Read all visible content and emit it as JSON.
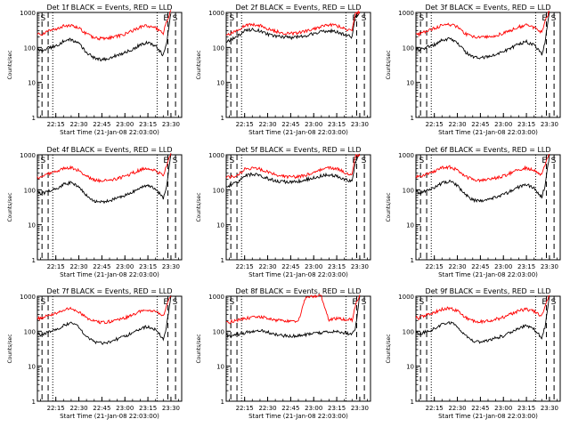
{
  "figure": {
    "start_time_label": "Start Time (21-Jan-08 22:03:00)",
    "ylabel": "Counts/sec",
    "legend_text": "BLACK = Events, RED = LLD",
    "colors": {
      "events": "#000000",
      "lld": "#ff0000",
      "axis": "#000000"
    }
  },
  "chart_data": [
    {
      "type": "line",
      "detector": "Det 1f",
      "title": "Det 1f BLACK = Events, RED = LLD",
      "xlabel": "Start Time (21-Jan-08 22:03:00)",
      "ylabel": "Counts/sec",
      "yscale": "log",
      "x_ticks": [
        "22:15",
        "22:30",
        "22:45",
        "23:00",
        "23:15",
        "23:30"
      ],
      "y_ticks": [
        "1",
        "10",
        "100",
        "1000"
      ],
      "ylim": [
        1,
        1000
      ],
      "x": [
        "22:03",
        "22:05",
        "22:10",
        "22:15",
        "22:20",
        "22:25",
        "22:30",
        "22:35",
        "22:40",
        "22:45",
        "22:50",
        "22:55",
        "23:00",
        "23:05",
        "23:10",
        "23:15",
        "23:20",
        "23:25",
        "23:27",
        "23:30"
      ],
      "series": [
        {
          "name": "RED = LLD",
          "color": "#ff0000",
          "values": [
            260,
            230,
            290,
            330,
            410,
            440,
            360,
            240,
            190,
            180,
            190,
            210,
            240,
            300,
            380,
            420,
            360,
            260,
            520,
            1100
          ]
        },
        {
          "name": "BLACK = Events",
          "color": "#000000",
          "values": [
            100,
            80,
            95,
            110,
            150,
            170,
            130,
            70,
            50,
            45,
            50,
            60,
            70,
            90,
            120,
            140,
            110,
            60,
            120,
            1000
          ]
        }
      ],
      "markers": {
        "dashed_left": [
          "22:06",
          "22:10"
        ],
        "dotted_left": [
          "22:13"
        ],
        "dotted_right": [
          "23:21"
        ],
        "dashed_right": [
          "23:28",
          "23:33"
        ],
        "labels": [
          "S",
          "E",
          "S"
        ]
      }
    },
    {
      "type": "line",
      "detector": "Det 2f",
      "title": "Det 2f BLACK = Events, RED = LLD",
      "xlabel": "Start Time (21-Jan-08 22:03:00)",
      "ylabel": "Counts/sec",
      "yscale": "log",
      "x_ticks": [
        "22:15",
        "22:30",
        "22:45",
        "23:00",
        "23:15",
        "23:30"
      ],
      "y_ticks": [
        "1",
        "10",
        "100",
        "1000"
      ],
      "ylim": [
        1,
        1000
      ],
      "x": [
        "22:03",
        "22:05",
        "22:10",
        "22:15",
        "22:20",
        "22:25",
        "22:30",
        "22:35",
        "22:40",
        "22:45",
        "22:50",
        "22:55",
        "23:00",
        "23:05",
        "23:10",
        "23:15",
        "23:20",
        "23:25",
        "23:27",
        "23:30"
      ],
      "series": [
        {
          "name": "RED = LLD",
          "color": "#ff0000",
          "values": [
            240,
            250,
            290,
            420,
            460,
            420,
            340,
            290,
            260,
            250,
            260,
            290,
            340,
            400,
            450,
            420,
            340,
            290,
            950,
            1000
          ]
        },
        {
          "name": "BLACK = Events",
          "color": "#000000",
          "values": [
            150,
            160,
            200,
            300,
            320,
            300,
            240,
            210,
            200,
            190,
            200,
            220,
            250,
            280,
            300,
            280,
            230,
            200,
            700,
            1000
          ]
        }
      ],
      "markers": {
        "dashed_left": [
          "22:06",
          "22:10"
        ],
        "dotted_left": [
          "22:13"
        ],
        "dotted_right": [
          "23:21"
        ],
        "dashed_right": [
          "23:28",
          "23:33"
        ],
        "labels": [
          "S",
          "E",
          "S"
        ]
      }
    },
    {
      "type": "line",
      "detector": "Det 3f",
      "title": "Det 3f BLACK = Events, RED = LLD",
      "xlabel": "Start Time (21-Jan-08 22:03:00)",
      "ylabel": "Counts/sec",
      "yscale": "log",
      "x_ticks": [
        "22:15",
        "22:30",
        "22:45",
        "23:00",
        "23:15",
        "23:30"
      ],
      "y_ticks": [
        "1",
        "10",
        "100",
        "1000"
      ],
      "ylim": [
        1,
        1000
      ],
      "x": [
        "22:03",
        "22:05",
        "22:10",
        "22:15",
        "22:20",
        "22:25",
        "22:30",
        "22:35",
        "22:40",
        "22:45",
        "22:50",
        "22:55",
        "23:00",
        "23:05",
        "23:10",
        "23:15",
        "23:20",
        "23:25",
        "23:27",
        "23:30"
      ],
      "series": [
        {
          "name": "RED = LLD",
          "color": "#ff0000",
          "values": [
            260,
            240,
            300,
            350,
            430,
            460,
            380,
            250,
            200,
            190,
            200,
            220,
            250,
            310,
            390,
            430,
            370,
            270,
            550,
            1100
          ]
        },
        {
          "name": "BLACK = Events",
          "color": "#000000",
          "values": [
            100,
            85,
            100,
            120,
            160,
            180,
            140,
            75,
            55,
            50,
            55,
            65,
            75,
            95,
            125,
            145,
            115,
            65,
            130,
            1000
          ]
        }
      ],
      "markers": {
        "dashed_left": [
          "22:06",
          "22:10"
        ],
        "dotted_left": [
          "22:13"
        ],
        "dotted_right": [
          "23:21"
        ],
        "dashed_right": [
          "23:28",
          "23:33"
        ],
        "labels": [
          "S",
          "E",
          "S"
        ]
      }
    },
    {
      "type": "line",
      "detector": "Det 4f",
      "title": "Det 4f BLACK = Events, RED = LLD",
      "xlabel": "Start Time (21-Jan-08 22:03:00)",
      "ylabel": "Counts/sec",
      "yscale": "log",
      "x_ticks": [
        "22:15",
        "22:30",
        "22:45",
        "23:00",
        "23:15",
        "23:30"
      ],
      "y_ticks": [
        "1",
        "10",
        "100",
        "1000"
      ],
      "ylim": [
        1,
        1000
      ],
      "x": [
        "22:03",
        "22:05",
        "22:10",
        "22:15",
        "22:20",
        "22:25",
        "22:30",
        "22:35",
        "22:40",
        "22:45",
        "22:50",
        "22:55",
        "23:00",
        "23:05",
        "23:10",
        "23:15",
        "23:20",
        "23:25",
        "23:27",
        "23:30"
      ],
      "series": [
        {
          "name": "RED = LLD",
          "color": "#ff0000",
          "values": [
            230,
            220,
            280,
            320,
            400,
            430,
            350,
            240,
            190,
            180,
            190,
            210,
            240,
            300,
            370,
            410,
            350,
            250,
            500,
            1100
          ]
        },
        {
          "name": "BLACK = Events",
          "color": "#000000",
          "values": [
            90,
            75,
            90,
            105,
            140,
            160,
            125,
            68,
            48,
            44,
            48,
            58,
            68,
            88,
            115,
            135,
            105,
            58,
            115,
            1000
          ]
        }
      ],
      "markers": {
        "dashed_left": [
          "22:06",
          "22:10"
        ],
        "dotted_left": [
          "22:13"
        ],
        "dotted_right": [
          "23:21"
        ],
        "dashed_right": [
          "23:28",
          "23:33"
        ],
        "labels": [
          "S",
          "E",
          "S"
        ]
      }
    },
    {
      "type": "line",
      "detector": "Det 5f",
      "title": "Det 5f BLACK = Events, RED = LLD",
      "xlabel": "Start Time (21-Jan-08 22:03:00)",
      "ylabel": "Counts/sec",
      "yscale": "log",
      "x_ticks": [
        "22:15",
        "22:30",
        "22:45",
        "23:00",
        "23:15",
        "23:30"
      ],
      "y_ticks": [
        "1",
        "10",
        "100",
        "1000"
      ],
      "ylim": [
        1,
        1000
      ],
      "x": [
        "22:03",
        "22:05",
        "22:10",
        "22:15",
        "22:20",
        "22:25",
        "22:30",
        "22:35",
        "22:40",
        "22:45",
        "22:50",
        "22:55",
        "23:00",
        "23:05",
        "23:10",
        "23:15",
        "23:20",
        "23:25",
        "23:27",
        "23:30"
      ],
      "series": [
        {
          "name": "RED = LLD",
          "color": "#ff0000",
          "values": [
            220,
            230,
            260,
            380,
            420,
            390,
            320,
            270,
            240,
            230,
            240,
            270,
            320,
            380,
            430,
            400,
            320,
            270,
            900,
            1000
          ]
        },
        {
          "name": "BLACK = Events",
          "color": "#000000",
          "values": [
            120,
            130,
            160,
            250,
            280,
            260,
            210,
            180,
            170,
            165,
            175,
            195,
            220,
            250,
            270,
            250,
            200,
            170,
            600,
            1000
          ]
        }
      ],
      "markers": {
        "dashed_left": [
          "22:06",
          "22:10"
        ],
        "dotted_left": [
          "22:13"
        ],
        "dotted_right": [
          "23:21"
        ],
        "dashed_right": [
          "23:28",
          "23:33"
        ],
        "labels": [
          "S",
          "E",
          "S"
        ]
      }
    },
    {
      "type": "line",
      "detector": "Det 6f",
      "title": "Det 6f BLACK = Events, RED = LLD",
      "xlabel": "Start Time (21-Jan-08 22:03:00)",
      "ylabel": "Counts/sec",
      "yscale": "log",
      "x_ticks": [
        "22:15",
        "22:30",
        "22:45",
        "23:00",
        "23:15",
        "23:30"
      ],
      "y_ticks": [
        "1",
        "10",
        "100",
        "1000"
      ],
      "ylim": [
        1,
        1000
      ],
      "x": [
        "22:03",
        "22:05",
        "22:10",
        "22:15",
        "22:20",
        "22:25",
        "22:30",
        "22:35",
        "22:40",
        "22:45",
        "22:50",
        "22:55",
        "23:00",
        "23:05",
        "23:10",
        "23:15",
        "23:20",
        "23:25",
        "23:27",
        "23:30"
      ],
      "series": [
        {
          "name": "RED = LLD",
          "color": "#ff0000",
          "values": [
            250,
            235,
            290,
            340,
            420,
            450,
            370,
            245,
            195,
            185,
            195,
            215,
            245,
            305,
            380,
            420,
            360,
            265,
            530,
            1100
          ]
        },
        {
          "name": "BLACK = Events",
          "color": "#000000",
          "values": [
            95,
            80,
            95,
            115,
            155,
            175,
            135,
            72,
            52,
            47,
            52,
            62,
            72,
            92,
            120,
            140,
            112,
            62,
            125,
            1000
          ]
        }
      ],
      "markers": {
        "dashed_left": [
          "22:06",
          "22:10"
        ],
        "dotted_left": [
          "22:13"
        ],
        "dotted_right": [
          "23:21"
        ],
        "dashed_right": [
          "23:28",
          "23:33"
        ],
        "labels": [
          "S",
          "E",
          "S"
        ]
      }
    },
    {
      "type": "line",
      "detector": "Det 7f",
      "title": "Det 7f BLACK = Events, RED = LLD",
      "xlabel": "Start Time (21-Jan-08 22:03:00)",
      "ylabel": "Counts/sec",
      "yscale": "log",
      "x_ticks": [
        "22:15",
        "22:30",
        "22:45",
        "23:00",
        "23:15",
        "23:30"
      ],
      "y_ticks": [
        "1",
        "10",
        "100",
        "1000"
      ],
      "ylim": [
        1,
        1000
      ],
      "x": [
        "22:03",
        "22:05",
        "22:10",
        "22:15",
        "22:20",
        "22:25",
        "22:30",
        "22:35",
        "22:40",
        "22:45",
        "22:50",
        "22:55",
        "23:00",
        "23:05",
        "23:10",
        "23:15",
        "23:20",
        "23:25",
        "23:27",
        "23:30"
      ],
      "series": [
        {
          "name": "RED = LLD",
          "color": "#ff0000",
          "values": [
            240,
            225,
            285,
            330,
            410,
            440,
            360,
            240,
            190,
            180,
            190,
            210,
            240,
            300,
            375,
            415,
            355,
            260,
            520,
            1100
          ]
        },
        {
          "name": "BLACK = Events",
          "color": "#000000",
          "values": [
            92,
            78,
            92,
            108,
            148,
            168,
            130,
            70,
            50,
            45,
            50,
            60,
            70,
            90,
            118,
            138,
            108,
            60,
            120,
            1000
          ]
        }
      ],
      "markers": {
        "dashed_left": [
          "22:06",
          "22:10"
        ],
        "dotted_left": [
          "22:13"
        ],
        "dotted_right": [
          "23:21"
        ],
        "dashed_right": [
          "23:28",
          "23:33"
        ],
        "labels": [
          "S",
          "E",
          "S"
        ]
      }
    },
    {
      "type": "line",
      "detector": "Det 8f",
      "title": "Det 8f BLACK = Events, RED = LLD",
      "xlabel": "Start Time (21-Jan-08 22:03:00)",
      "ylabel": "Counts/sec",
      "yscale": "log",
      "x_ticks": [
        "22:15",
        "22:30",
        "22:45",
        "23:00",
        "23:15",
        "23:30"
      ],
      "y_ticks": [
        "1",
        "10",
        "100",
        "1000"
      ],
      "ylim": [
        1,
        1000
      ],
      "x": [
        "22:03",
        "22:05",
        "22:10",
        "22:15",
        "22:20",
        "22:25",
        "22:30",
        "22:35",
        "22:40",
        "22:45",
        "22:50",
        "22:55",
        "23:00",
        "23:05",
        "23:10",
        "23:15",
        "23:20",
        "23:25",
        "23:27",
        "23:30"
      ],
      "series": [
        {
          "name": "RED = LLD",
          "color": "#ff0000",
          "values": [
            190,
            180,
            210,
            230,
            250,
            260,
            240,
            210,
            200,
            195,
            200,
            1000,
            1000,
            1000,
            210,
            230,
            220,
            210,
            500,
            1100
          ]
        },
        {
          "name": "BLACK = Events",
          "color": "#000000",
          "values": [
            80,
            70,
            80,
            90,
            100,
            105,
            95,
            80,
            75,
            72,
            75,
            80,
            85,
            90,
            95,
            100,
            90,
            80,
            110,
            1000
          ]
        }
      ],
      "markers": {
        "dashed_left": [
          "22:06",
          "22:10"
        ],
        "dotted_left": [
          "22:13"
        ],
        "dotted_right": [
          "23:21"
        ],
        "dashed_right": [
          "23:28",
          "23:33"
        ],
        "labels": [
          "S",
          "E",
          "S"
        ]
      }
    },
    {
      "type": "line",
      "detector": "Det 9f",
      "title": "Det 9f BLACK = Events, RED = LLD",
      "xlabel": "Start Time (21-Jan-08 22:03:00)",
      "ylabel": "Counts/sec",
      "yscale": "log",
      "x_ticks": [
        "22:15",
        "22:30",
        "22:45",
        "23:00",
        "23:15",
        "23:30"
      ],
      "y_ticks": [
        "1",
        "10",
        "100",
        "1000"
      ],
      "ylim": [
        1,
        1000
      ],
      "x": [
        "22:03",
        "22:05",
        "22:10",
        "22:15",
        "22:20",
        "22:25",
        "22:30",
        "22:35",
        "22:40",
        "22:45",
        "22:50",
        "22:55",
        "23:00",
        "23:05",
        "23:10",
        "23:15",
        "23:20",
        "23:25",
        "23:27",
        "23:30"
      ],
      "series": [
        {
          "name": "RED = LLD",
          "color": "#ff0000",
          "values": [
            255,
            238,
            295,
            345,
            425,
            455,
            375,
            248,
            198,
            188,
            198,
            218,
            248,
            308,
            385,
            425,
            365,
            268,
            540,
            1100
          ]
        },
        {
          "name": "BLACK = Events",
          "color": "#000000",
          "values": [
            98,
            82,
            98,
            118,
            158,
            178,
            138,
            74,
            54,
            49,
            54,
            64,
            74,
            94,
            122,
            142,
            114,
            64,
            128,
            1000
          ]
        }
      ],
      "markers": {
        "dashed_left": [
          "22:06",
          "22:10"
        ],
        "dotted_left": [
          "22:13"
        ],
        "dotted_right": [
          "23:21"
        ],
        "dashed_right": [
          "23:28",
          "23:33"
        ],
        "labels": [
          "S",
          "E",
          "S"
        ]
      }
    }
  ]
}
